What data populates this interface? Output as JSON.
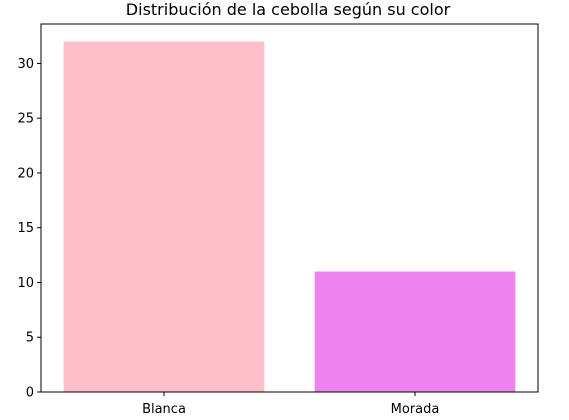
{
  "chart_data": {
    "type": "bar",
    "title": "Distribución de la cebolla según su color",
    "xlabel": "",
    "ylabel": "",
    "categories": [
      "Blanca",
      "Morada"
    ],
    "values": [
      32,
      11
    ],
    "colors": [
      "#ffc0cb",
      "#ee82ee"
    ],
    "ylim": [
      0,
      33.6
    ],
    "yticks": [
      0,
      5,
      10,
      15,
      20,
      25,
      30
    ],
    "grid": false,
    "legend": "none"
  }
}
